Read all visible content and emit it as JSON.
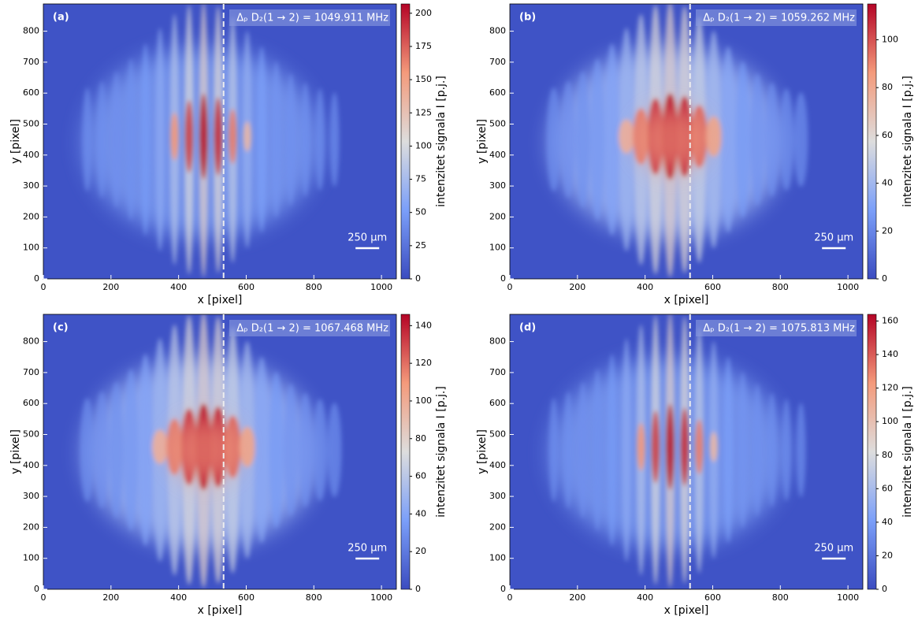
{
  "chart_data": [
    {
      "type": "image",
      "label": "(a)",
      "annotation": "Δₚ D₂(1 → 2) = 1049.911 MHz",
      "scalebar_label": "250 µm",
      "xlabel": "x [pixel]",
      "ylabel": "y [pixel]",
      "xlim": [
        0,
        1044
      ],
      "ylim": [
        0,
        888
      ],
      "xticks": [
        0,
        200,
        400,
        600,
        800,
        1000
      ],
      "yticks": [
        0,
        100,
        200,
        300,
        400,
        500,
        600,
        700,
        800
      ],
      "vline": 533,
      "colorbar": {
        "label": "intenzitet signala I [p.j.]",
        "lim": [
          0,
          207
        ],
        "ticks": [
          0,
          25,
          50,
          75,
          100,
          125,
          150,
          175,
          200
        ]
      }
    },
    {
      "type": "image",
      "label": "(b)",
      "annotation": "Δₚ D₂(1 → 2) = 1059.262 MHz",
      "scalebar_label": "250 µm",
      "xlabel": "x [pixel]",
      "ylabel": "y [pixel]",
      "xlim": [
        0,
        1044
      ],
      "ylim": [
        0,
        888
      ],
      "xticks": [
        0,
        200,
        400,
        600,
        800,
        1000
      ],
      "yticks": [
        0,
        100,
        200,
        300,
        400,
        500,
        600,
        700,
        800
      ],
      "vline": 533,
      "colorbar": {
        "label": "intenzitet signala I [p.j.]",
        "lim": [
          0,
          115
        ],
        "ticks": [
          0,
          20,
          40,
          60,
          80,
          100
        ]
      }
    },
    {
      "type": "image",
      "label": "(c)",
      "annotation": "Δₚ D₂(1 → 2) = 1067.468 MHz",
      "scalebar_label": "250 µm",
      "xlabel": "x [pixel]",
      "ylabel": "y [pixel]",
      "xlim": [
        0,
        1044
      ],
      "ylim": [
        0,
        888
      ],
      "xticks": [
        0,
        200,
        400,
        600,
        800,
        1000
      ],
      "yticks": [
        0,
        100,
        200,
        300,
        400,
        500,
        600,
        700,
        800
      ],
      "vline": 533,
      "colorbar": {
        "label": "intenzitet signala I [p.j.]",
        "lim": [
          0,
          146
        ],
        "ticks": [
          0,
          20,
          40,
          60,
          80,
          100,
          120,
          140
        ]
      }
    },
    {
      "type": "image",
      "label": "(d)",
      "annotation": "Δₚ D₂(1 → 2) = 1075.813 MHz",
      "scalebar_label": "250 µm",
      "xlabel": "x [pixel]",
      "ylabel": "y [pixel]",
      "xlim": [
        0,
        1044
      ],
      "ylim": [
        0,
        888
      ],
      "xticks": [
        0,
        200,
        400,
        600,
        800,
        1000
      ],
      "yticks": [
        0,
        100,
        200,
        300,
        400,
        500,
        600,
        700,
        800
      ],
      "vline": 533,
      "colorbar": {
        "label": "intenzitet signala I [p.j.]",
        "lim": [
          0,
          164
        ],
        "ticks": [
          0,
          20,
          40,
          60,
          80,
          100,
          120,
          140,
          160
        ]
      }
    }
  ]
}
